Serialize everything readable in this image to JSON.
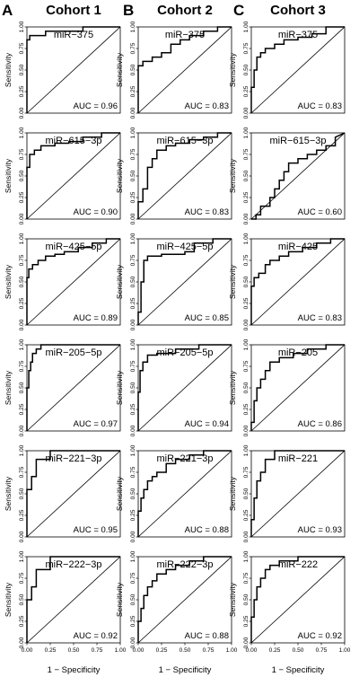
{
  "columns": [
    {
      "letter": "A",
      "title": "Cohort 1"
    },
    {
      "letter": "B",
      "title": "Cohort 2"
    },
    {
      "letter": "C",
      "title": "Cohort 3"
    }
  ],
  "axis": {
    "xlabel": "1 − Specificity",
    "ylabel": "Sensitivity",
    "ticks": [
      "0.00",
      "0.25",
      "0.50",
      "0.75",
      "1.00"
    ]
  },
  "chart_data": [
    {
      "type": "line",
      "column": 1,
      "row": 1,
      "title": "miR−375",
      "auc_label": "AUC = 0.96",
      "xlim": [
        0,
        1
      ],
      "ylim": [
        0,
        1
      ],
      "x": [
        0,
        0,
        0.03,
        0.03,
        0.2,
        0.2,
        0.6,
        0.6,
        1
      ],
      "y": [
        0,
        0.85,
        0.85,
        0.9,
        0.9,
        0.95,
        0.95,
        1,
        1
      ]
    },
    {
      "type": "line",
      "column": 2,
      "row": 1,
      "title": "miR−375",
      "auc_label": "AUC = 0.83",
      "xlim": [
        0,
        1
      ],
      "ylim": [
        0,
        1
      ],
      "x": [
        0,
        0,
        0.05,
        0.05,
        0.15,
        0.15,
        0.25,
        0.25,
        0.35,
        0.35,
        0.45,
        0.45,
        0.55,
        0.55,
        0.7,
        0.7,
        0.85,
        0.85,
        1
      ],
      "y": [
        0,
        0.55,
        0.55,
        0.6,
        0.6,
        0.65,
        0.65,
        0.7,
        0.7,
        0.8,
        0.8,
        0.85,
        0.85,
        0.9,
        0.9,
        0.95,
        0.95,
        1,
        1
      ]
    },
    {
      "type": "line",
      "column": 3,
      "row": 1,
      "title": "miR−375",
      "auc_label": "AUC = 0.83",
      "xlim": [
        0,
        1
      ],
      "ylim": [
        0,
        1
      ],
      "x": [
        0,
        0,
        0.03,
        0.03,
        0.06,
        0.06,
        0.1,
        0.1,
        0.15,
        0.15,
        0.25,
        0.25,
        0.35,
        0.35,
        0.5,
        0.5,
        0.65,
        0.65,
        0.8,
        0.8,
        1
      ],
      "y": [
        0,
        0.3,
        0.3,
        0.5,
        0.5,
        0.65,
        0.65,
        0.7,
        0.7,
        0.75,
        0.75,
        0.8,
        0.8,
        0.85,
        0.85,
        0.88,
        0.88,
        0.92,
        0.92,
        1,
        1
      ]
    },
    {
      "type": "line",
      "column": 1,
      "row": 2,
      "title": "miR−615−3p",
      "auc_label": "AUC = 0.90",
      "xlim": [
        0,
        1
      ],
      "ylim": [
        0,
        1
      ],
      "x": [
        0,
        0,
        0.03,
        0.03,
        0.08,
        0.08,
        0.15,
        0.15,
        0.3,
        0.3,
        0.45,
        0.45,
        0.6,
        0.6,
        0.8,
        0.8,
        1
      ],
      "y": [
        0,
        0.6,
        0.6,
        0.75,
        0.75,
        0.8,
        0.8,
        0.85,
        0.85,
        0.88,
        0.88,
        0.9,
        0.9,
        0.95,
        0.95,
        1,
        1
      ]
    },
    {
      "type": "line",
      "column": 2,
      "row": 2,
      "title": "miR−615−3p",
      "auc_label": "AUC = 0.83",
      "xlim": [
        0,
        1
      ],
      "ylim": [
        0,
        1
      ],
      "x": [
        0,
        0,
        0.05,
        0.05,
        0.1,
        0.1,
        0.15,
        0.15,
        0.2,
        0.2,
        0.3,
        0.3,
        0.4,
        0.4,
        0.55,
        0.55,
        0.7,
        0.7,
        0.85,
        0.85,
        1
      ],
      "y": [
        0,
        0.2,
        0.2,
        0.35,
        0.35,
        0.6,
        0.6,
        0.7,
        0.7,
        0.8,
        0.8,
        0.85,
        0.85,
        0.88,
        0.88,
        0.92,
        0.92,
        0.95,
        0.95,
        1,
        1
      ]
    },
    {
      "type": "line",
      "column": 3,
      "row": 2,
      "title": "miR−615−3p",
      "auc_label": "AUC = 0.60",
      "xlim": [
        0,
        1
      ],
      "ylim": [
        0,
        1
      ],
      "x": [
        0,
        0.05,
        0.05,
        0.1,
        0.1,
        0.2,
        0.2,
        0.25,
        0.25,
        0.3,
        0.3,
        0.35,
        0.35,
        0.4,
        0.4,
        0.5,
        0.5,
        0.6,
        0.6,
        0.7,
        0.7,
        0.8,
        0.8,
        0.9,
        0.9,
        1
      ],
      "y": [
        0,
        0,
        0.05,
        0.05,
        0.15,
        0.15,
        0.25,
        0.25,
        0.35,
        0.35,
        0.45,
        0.45,
        0.55,
        0.55,
        0.65,
        0.65,
        0.7,
        0.7,
        0.75,
        0.75,
        0.8,
        0.8,
        0.85,
        0.85,
        0.95,
        1
      ]
    },
    {
      "type": "line",
      "column": 1,
      "row": 3,
      "title": "miR−425−5p",
      "auc_label": "AUC = 0.89",
      "xlim": [
        0,
        1
      ],
      "ylim": [
        0,
        1
      ],
      "x": [
        0,
        0,
        0.02,
        0.02,
        0.06,
        0.06,
        0.12,
        0.12,
        0.2,
        0.2,
        0.3,
        0.3,
        0.4,
        0.4,
        0.55,
        0.55,
        0.7,
        0.7,
        0.85,
        0.85,
        1
      ],
      "y": [
        0,
        0.55,
        0.55,
        0.65,
        0.65,
        0.7,
        0.7,
        0.75,
        0.75,
        0.8,
        0.8,
        0.82,
        0.82,
        0.85,
        0.85,
        0.9,
        0.9,
        0.95,
        0.95,
        1,
        1
      ]
    },
    {
      "type": "line",
      "column": 2,
      "row": 3,
      "title": "miR−425−5p",
      "auc_label": "AUC = 0.85",
      "xlim": [
        0,
        1
      ],
      "ylim": [
        0,
        1
      ],
      "x": [
        0,
        0,
        0.03,
        0.03,
        0.06,
        0.06,
        0.1,
        0.1,
        0.25,
        0.25,
        0.5,
        0.5,
        0.6,
        0.6,
        0.8,
        0.8,
        1
      ],
      "y": [
        0,
        0.15,
        0.15,
        0.5,
        0.5,
        0.75,
        0.75,
        0.8,
        0.8,
        0.82,
        0.82,
        0.85,
        0.85,
        0.95,
        0.95,
        1,
        1
      ]
    },
    {
      "type": "line",
      "column": 3,
      "row": 3,
      "title": "miR−425",
      "auc_label": "AUC = 0.83",
      "xlim": [
        0,
        1
      ],
      "ylim": [
        0,
        1
      ],
      "x": [
        0,
        0,
        0.03,
        0.03,
        0.08,
        0.08,
        0.15,
        0.15,
        0.2,
        0.2,
        0.3,
        0.3,
        0.4,
        0.4,
        0.55,
        0.55,
        0.7,
        0.7,
        0.85,
        0.85,
        1
      ],
      "y": [
        0,
        0.45,
        0.45,
        0.55,
        0.55,
        0.6,
        0.6,
        0.7,
        0.7,
        0.75,
        0.75,
        0.8,
        0.8,
        0.85,
        0.85,
        0.9,
        0.9,
        0.95,
        0.95,
        1,
        1
      ]
    },
    {
      "type": "line",
      "column": 1,
      "row": 4,
      "title": "miR−205−5p",
      "auc_label": "AUC = 0.97",
      "xlim": [
        0,
        1
      ],
      "ylim": [
        0,
        1
      ],
      "x": [
        0,
        0,
        0.02,
        0.02,
        0.04,
        0.04,
        0.06,
        0.06,
        0.1,
        0.1,
        0.15,
        0.15,
        1
      ],
      "y": [
        0,
        0.5,
        0.5,
        0.7,
        0.7,
        0.8,
        0.8,
        0.9,
        0.9,
        0.95,
        0.95,
        1,
        1
      ]
    },
    {
      "type": "line",
      "column": 2,
      "row": 4,
      "title": "miR−205−5p",
      "auc_label": "AUC = 0.94",
      "xlim": [
        0,
        1
      ],
      "ylim": [
        0,
        1
      ],
      "x": [
        0,
        0,
        0.02,
        0.02,
        0.05,
        0.05,
        0.1,
        0.1,
        0.2,
        0.2,
        0.4,
        0.4,
        0.65,
        0.65,
        1
      ],
      "y": [
        0,
        0.45,
        0.45,
        0.7,
        0.7,
        0.8,
        0.8,
        0.88,
        0.88,
        0.9,
        0.9,
        0.95,
        0.95,
        1,
        1
      ]
    },
    {
      "type": "line",
      "column": 3,
      "row": 4,
      "title": "miR−205",
      "auc_label": "AUC = 0.86",
      "xlim": [
        0,
        1
      ],
      "ylim": [
        0,
        1
      ],
      "x": [
        0,
        0,
        0.03,
        0.03,
        0.06,
        0.06,
        0.1,
        0.1,
        0.15,
        0.15,
        0.2,
        0.2,
        0.3,
        0.3,
        0.45,
        0.45,
        0.6,
        0.6,
        0.8,
        0.8,
        1
      ],
      "y": [
        0,
        0.1,
        0.1,
        0.35,
        0.35,
        0.5,
        0.5,
        0.6,
        0.6,
        0.7,
        0.7,
        0.8,
        0.8,
        0.85,
        0.85,
        0.9,
        0.9,
        0.95,
        0.95,
        1,
        1
      ]
    },
    {
      "type": "line",
      "column": 1,
      "row": 5,
      "title": "miR−221−3p",
      "auc_label": "AUC = 0.95",
      "xlim": [
        0,
        1
      ],
      "ylim": [
        0,
        1
      ],
      "x": [
        0,
        0,
        0.05,
        0.05,
        0.1,
        0.1,
        0.25,
        0.25,
        1
      ],
      "y": [
        0,
        0.55,
        0.55,
        0.7,
        0.7,
        0.9,
        0.9,
        1,
        1
      ]
    },
    {
      "type": "line",
      "column": 2,
      "row": 5,
      "title": "miR−221−3p",
      "auc_label": "AUC = 0.88",
      "xlim": [
        0,
        1
      ],
      "ylim": [
        0,
        1
      ],
      "x": [
        0,
        0,
        0.03,
        0.03,
        0.06,
        0.06,
        0.1,
        0.1,
        0.15,
        0.15,
        0.2,
        0.2,
        0.3,
        0.3,
        0.4,
        0.4,
        0.55,
        0.55,
        0.7,
        0.7,
        1
      ],
      "y": [
        0,
        0.3,
        0.3,
        0.45,
        0.45,
        0.55,
        0.55,
        0.65,
        0.65,
        0.7,
        0.7,
        0.75,
        0.75,
        0.85,
        0.85,
        0.9,
        0.9,
        0.95,
        0.95,
        1,
        1
      ]
    },
    {
      "type": "line",
      "column": 3,
      "row": 5,
      "title": "miR−221",
      "auc_label": "AUC = 0.93",
      "xlim": [
        0,
        1
      ],
      "ylim": [
        0,
        1
      ],
      "x": [
        0,
        0,
        0.03,
        0.03,
        0.06,
        0.06,
        0.1,
        0.1,
        0.15,
        0.15,
        0.25,
        0.25,
        1
      ],
      "y": [
        0,
        0.2,
        0.2,
        0.45,
        0.45,
        0.65,
        0.65,
        0.75,
        0.75,
        0.9,
        0.9,
        1,
        1
      ]
    },
    {
      "type": "line",
      "column": 1,
      "row": 6,
      "title": "miR−222−3p",
      "auc_label": "AUC = 0.92",
      "xlim": [
        0,
        1
      ],
      "ylim": [
        0,
        1
      ],
      "x": [
        0,
        0,
        0.05,
        0.05,
        0.1,
        0.1,
        0.25,
        0.25,
        1
      ],
      "y": [
        0,
        0.5,
        0.5,
        0.65,
        0.65,
        0.85,
        0.85,
        1,
        1
      ]
    },
    {
      "type": "line",
      "column": 2,
      "row": 6,
      "title": "miR−222−3p",
      "auc_label": "AUC = 0.88",
      "xlim": [
        0,
        1
      ],
      "ylim": [
        0,
        1
      ],
      "x": [
        0,
        0,
        0.03,
        0.03,
        0.06,
        0.06,
        0.1,
        0.1,
        0.15,
        0.15,
        0.2,
        0.2,
        0.3,
        0.3,
        0.4,
        0.4,
        0.55,
        0.55,
        0.7,
        0.7,
        1
      ],
      "y": [
        0,
        0.25,
        0.25,
        0.4,
        0.4,
        0.55,
        0.55,
        0.65,
        0.65,
        0.72,
        0.72,
        0.8,
        0.8,
        0.85,
        0.85,
        0.9,
        0.9,
        0.95,
        0.95,
        1,
        1
      ]
    },
    {
      "type": "line",
      "column": 3,
      "row": 6,
      "title": "miR−222",
      "auc_label": "AUC = 0.92",
      "xlim": [
        0,
        1
      ],
      "ylim": [
        0,
        1
      ],
      "x": [
        0,
        0,
        0.03,
        0.03,
        0.06,
        0.06,
        0.1,
        0.1,
        0.15,
        0.15,
        0.2,
        0.2,
        0.3,
        0.3,
        0.5,
        0.5,
        1
      ],
      "y": [
        0,
        0.3,
        0.3,
        0.5,
        0.5,
        0.65,
        0.65,
        0.75,
        0.75,
        0.85,
        0.85,
        0.9,
        0.9,
        0.95,
        0.95,
        1,
        1
      ]
    }
  ]
}
